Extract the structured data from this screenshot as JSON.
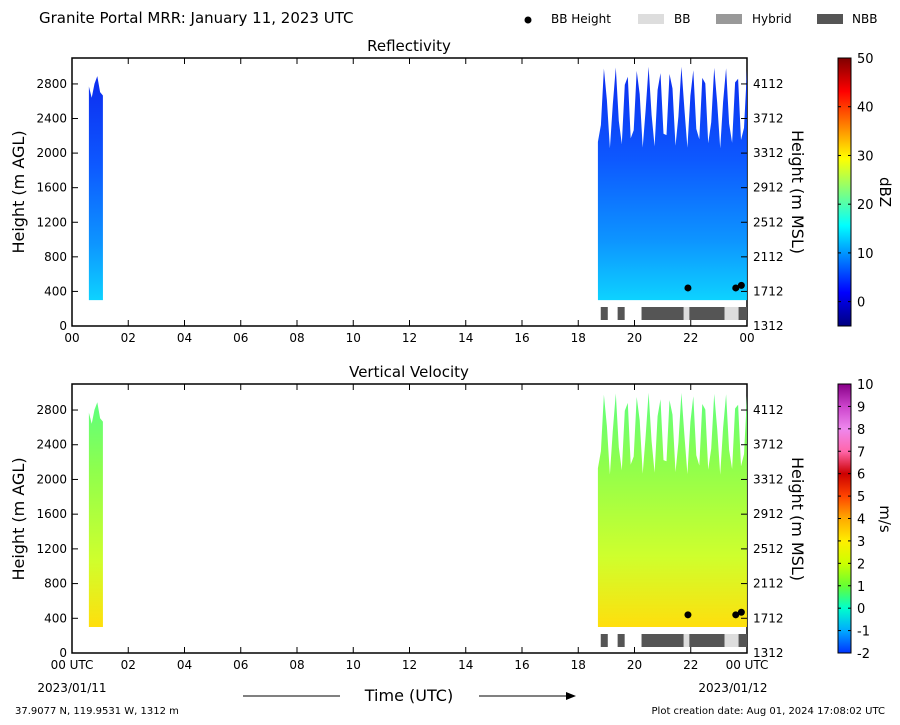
{
  "header": {
    "title": "Granite Portal MRR:  January 11, 2023 UTC",
    "legend": [
      {
        "label": "BB Height",
        "symbol": "dot",
        "color": "#000000"
      },
      {
        "label": "BB",
        "symbol": "box",
        "color": "#dddddd"
      },
      {
        "label": "Hybrid",
        "symbol": "box",
        "color": "#999999"
      },
      {
        "label": "NBB",
        "symbol": "box",
        "color": "#555555"
      }
    ]
  },
  "footer": {
    "location": "37.9077 N, 119.9531 W, 1312 m",
    "creation": "Plot creation date: Aug 01, 2024 17:08:02 UTC"
  },
  "xaxis": {
    "label": "Time (UTC)",
    "ticks": [
      0,
      2,
      4,
      6,
      8,
      10,
      12,
      14,
      16,
      18,
      20,
      22,
      24
    ],
    "tick_labels": [
      "00",
      "02",
      "04",
      "06",
      "08",
      "10",
      "12",
      "14",
      "16",
      "18",
      "20",
      "22",
      "00"
    ],
    "bottom_tick_labels": [
      "00 UTC",
      "02",
      "04",
      "06",
      "08",
      "10",
      "12",
      "14",
      "16",
      "18",
      "20",
      "22",
      "00 UTC"
    ],
    "start_date": "2023/01/11",
    "end_date": "2023/01/12"
  },
  "chart_data": [
    {
      "type": "heatmap",
      "title": "Reflectivity",
      "ylabel_left": "Height (m AGL)",
      "ylabel_right": "Height (m MSL)",
      "xlim": [
        0,
        24
      ],
      "ylim": [
        0,
        3100
      ],
      "yticks_left": [
        0,
        400,
        800,
        1200,
        1600,
        2000,
        2400,
        2800
      ],
      "yticks_right": [
        "1312",
        "1712",
        "2112",
        "2512",
        "2912",
        "3312",
        "3712",
        "4112"
      ],
      "colorbar": {
        "label": "dBZ",
        "min": -5,
        "max": 50,
        "ticks": [
          0,
          10,
          20,
          30,
          40,
          50
        ],
        "colors": [
          "#00007f",
          "#0000ff",
          "#007fff",
          "#00ffff",
          "#7fff7f",
          "#ffff00",
          "#ff7f00",
          "#ff0000",
          "#7f0000"
        ]
      },
      "echo_periods": [
        {
          "start": 0.6,
          "end": 1.1,
          "top": 2900
        },
        {
          "start": 18.7,
          "end": 24.0,
          "top": 3000
        }
      ],
      "bb_height_points": [
        {
          "time": 21.9,
          "height": 440
        },
        {
          "time": 23.6,
          "height": 440
        },
        {
          "time": 23.8,
          "height": 470
        }
      ],
      "bb_type_segments": [
        {
          "start": 18.8,
          "end": 19.05,
          "type": "NBB"
        },
        {
          "start": 19.4,
          "end": 19.65,
          "type": "NBB"
        },
        {
          "start": 20.25,
          "end": 21.75,
          "type": "NBB"
        },
        {
          "start": 21.75,
          "end": 21.95,
          "type": "BB"
        },
        {
          "start": 21.95,
          "end": 23.2,
          "type": "NBB"
        },
        {
          "start": 23.2,
          "end": 23.7,
          "type": "BB"
        },
        {
          "start": 23.7,
          "end": 24.0,
          "type": "NBB"
        }
      ]
    },
    {
      "type": "heatmap",
      "title": "Vertical Velocity",
      "ylabel_left": "Height (m AGL)",
      "ylabel_right": "Height (m MSL)",
      "xlim": [
        0,
        24
      ],
      "ylim": [
        0,
        3100
      ],
      "yticks_left": [
        0,
        400,
        800,
        1200,
        1600,
        2000,
        2400,
        2800
      ],
      "yticks_right": [
        "1312",
        "1712",
        "2112",
        "2512",
        "2912",
        "3312",
        "3712",
        "4112"
      ],
      "colorbar": {
        "label": "m/s",
        "min": -2,
        "max": 10,
        "ticks": [
          -2,
          -1,
          0,
          1,
          2,
          3,
          4,
          5,
          6,
          7,
          8,
          9,
          10
        ],
        "colors": [
          "#0033ff",
          "#00aaff",
          "#00ffcc",
          "#66ff33",
          "#ccff00",
          "#ffee00",
          "#ffaa00",
          "#ff4400",
          "#cc0000",
          "#ff66aa",
          "#ee88ee",
          "#cc44cc",
          "#880088"
        ]
      },
      "echo_periods": [
        {
          "start": 0.6,
          "end": 1.1,
          "top": 2900
        },
        {
          "start": 18.7,
          "end": 24.0,
          "top": 3000
        }
      ],
      "bb_height_points": [
        {
          "time": 21.9,
          "height": 440
        },
        {
          "time": 23.6,
          "height": 440
        },
        {
          "time": 23.8,
          "height": 470
        }
      ],
      "bb_type_segments": [
        {
          "start": 18.8,
          "end": 19.05,
          "type": "NBB"
        },
        {
          "start": 19.4,
          "end": 19.65,
          "type": "NBB"
        },
        {
          "start": 20.25,
          "end": 21.75,
          "type": "NBB"
        },
        {
          "start": 21.75,
          "end": 21.95,
          "type": "BB"
        },
        {
          "start": 21.95,
          "end": 23.2,
          "type": "NBB"
        },
        {
          "start": 23.2,
          "end": 23.7,
          "type": "BB"
        },
        {
          "start": 23.7,
          "end": 24.0,
          "type": "NBB"
        }
      ]
    }
  ]
}
